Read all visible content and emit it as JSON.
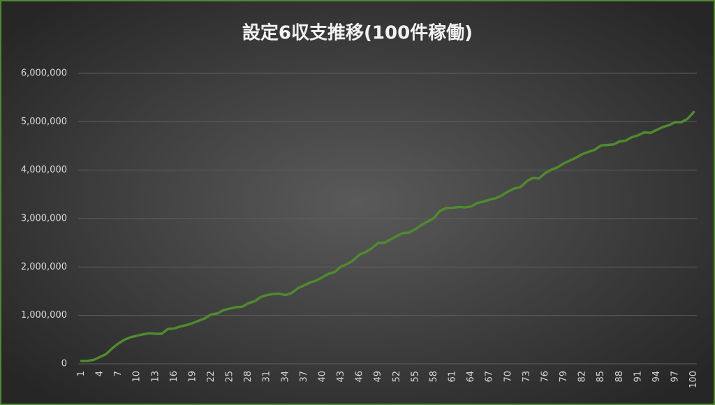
{
  "chart_data": {
    "type": "line",
    "title": "設定6収支推移(100件稼働)",
    "categories": [
      "1",
      null,
      null,
      "4",
      null,
      null,
      "7",
      null,
      null,
      "10",
      null,
      null,
      "13",
      null,
      null,
      "16",
      null,
      null,
      "19",
      null,
      null,
      "22",
      null,
      null,
      "25",
      null,
      null,
      "28",
      null,
      null,
      "31",
      null,
      null,
      "34",
      null,
      null,
      "37",
      null,
      null,
      "40",
      null,
      null,
      "43",
      null,
      null,
      "46",
      null,
      null,
      "49",
      null,
      null,
      "52",
      null,
      null,
      "55",
      null,
      null,
      "58",
      null,
      null,
      "61",
      null,
      null,
      "64",
      null,
      null,
      "67",
      null,
      null,
      "70",
      null,
      null,
      "73",
      null,
      null,
      "76",
      null,
      null,
      "79",
      null,
      null,
      "82",
      null,
      null,
      "85",
      null,
      null,
      "88",
      null,
      null,
      "91",
      null,
      null,
      "94",
      null,
      null,
      "97",
      null,
      null,
      "100"
    ],
    "values": [
      60000,
      60000,
      80000,
      140000,
      200000,
      320000,
      420000,
      500000,
      550000,
      580000,
      610000,
      630000,
      620000,
      620000,
      720000,
      730000,
      770000,
      800000,
      840000,
      890000,
      940000,
      1020000,
      1040000,
      1110000,
      1140000,
      1170000,
      1180000,
      1250000,
      1290000,
      1380000,
      1420000,
      1440000,
      1450000,
      1420000,
      1460000,
      1560000,
      1620000,
      1680000,
      1720000,
      1790000,
      1860000,
      1900000,
      2010000,
      2060000,
      2140000,
      2260000,
      2310000,
      2390000,
      2500000,
      2500000,
      2570000,
      2640000,
      2700000,
      2710000,
      2780000,
      2870000,
      2940000,
      3010000,
      3160000,
      3220000,
      3220000,
      3240000,
      3230000,
      3250000,
      3320000,
      3350000,
      3390000,
      3420000,
      3480000,
      3560000,
      3620000,
      3650000,
      3770000,
      3840000,
      3830000,
      3940000,
      4010000,
      4060000,
      4140000,
      4200000,
      4260000,
      4330000,
      4380000,
      4420000,
      4510000,
      4520000,
      4530000,
      4590000,
      4610000,
      4680000,
      4720000,
      4780000,
      4770000,
      4830000,
      4890000,
      4930000,
      4990000,
      4990000,
      5060000,
      5200000
    ],
    "color": "#4f8a2f",
    "ylim": [
      0,
      6000000
    ],
    "yticks": [
      0,
      {
        "value": 1000000,
        "label": "1,000,000"
      },
      {
        "value": 2000000,
        "label": "2,000,000"
      },
      {
        "value": 3000000,
        "label": "3,000,000"
      },
      {
        "value": 4000000,
        "label": "4,000,000"
      },
      {
        "value": 5000000,
        "label": "5,000,000"
      },
      {
        "value": 6000000,
        "label": "6,000,000"
      }
    ],
    "grid": true
  }
}
